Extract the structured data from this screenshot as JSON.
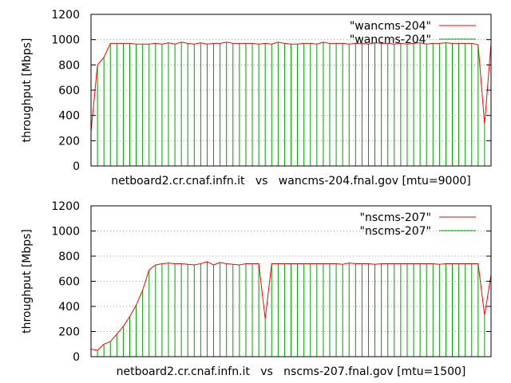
{
  "chart_data": [
    {
      "type": "line",
      "ylabel": "throughput [Mbps]",
      "xlabel": "netboard2.cr.cnaf.infn.it   vs   wancms-204.fnal.gov [mtu=9000]",
      "ylim": [
        0,
        1200
      ],
      "yticks": [
        0,
        200,
        400,
        600,
        800,
        1000,
        1200
      ],
      "grid": "horizontal dotted at y ticks",
      "legend_position": "top-right",
      "series": [
        {
          "name": "\"wancms-204\"",
          "style": "lines",
          "color": "#ff0000"
        },
        {
          "name": "\"wancms-204\"",
          "style": "impulses",
          "color": "#00a000"
        }
      ],
      "x": [
        0,
        1,
        2,
        3,
        4,
        5,
        6,
        7,
        8,
        9,
        10,
        11,
        12,
        13,
        14,
        15,
        16,
        17,
        18,
        19,
        20,
        21,
        22,
        23,
        24,
        25,
        26,
        27,
        28,
        29,
        30,
        31,
        32,
        33,
        34,
        35,
        36,
        37,
        38,
        39,
        40,
        41,
        42,
        43,
        44,
        45,
        46,
        47,
        48,
        49,
        50,
        51,
        52,
        53,
        54,
        55,
        56,
        57,
        58,
        59,
        60,
        61,
        62
      ],
      "values": [
        270,
        800,
        860,
        970,
        970,
        970,
        970,
        965,
        965,
        965,
        970,
        965,
        975,
        965,
        980,
        970,
        965,
        975,
        965,
        970,
        970,
        980,
        970,
        970,
        970,
        970,
        965,
        970,
        965,
        980,
        970,
        965,
        965,
        970,
        970,
        965,
        980,
        970,
        970,
        970,
        965,
        970,
        970,
        965,
        975,
        970,
        970,
        965,
        970,
        965,
        970,
        975,
        965,
        970,
        970,
        975,
        970,
        970,
        970,
        970,
        960,
        330,
        970
      ]
    },
    {
      "type": "line",
      "ylabel": "throughput [Mbps]",
      "xlabel": "netboard2.cr.cnaf.infn.it   vs   nscms-207.fnal.gov [mtu=1500]",
      "ylim": [
        0,
        1200
      ],
      "yticks": [
        0,
        200,
        400,
        600,
        800,
        1000,
        1200
      ],
      "grid": "horizontal dotted at y ticks",
      "legend_position": "top-right",
      "series": [
        {
          "name": "\"nscms-207\"",
          "style": "lines",
          "color": "#ff0000"
        },
        {
          "name": "\"nscms-207\"",
          "style": "impulses",
          "color": "#00a000"
        }
      ],
      "x": [
        0,
        1,
        2,
        3,
        4,
        5,
        6,
        7,
        8,
        9,
        10,
        11,
        12,
        13,
        14,
        15,
        16,
        17,
        18,
        19,
        20,
        21,
        22,
        23,
        24,
        25,
        26,
        27,
        28,
        29,
        30,
        31,
        32,
        33,
        34,
        35,
        36,
        37,
        38,
        39,
        40,
        41,
        42,
        43,
        44,
        45,
        46,
        47,
        48,
        49,
        50,
        51,
        52,
        53,
        54,
        55,
        56,
        57,
        58,
        59,
        60,
        61,
        62
      ],
      "values": [
        60,
        50,
        100,
        120,
        180,
        240,
        320,
        410,
        530,
        690,
        730,
        740,
        745,
        740,
        740,
        735,
        730,
        740,
        755,
        730,
        750,
        740,
        735,
        730,
        740,
        740,
        740,
        300,
        740,
        740,
        740,
        740,
        740,
        740,
        740,
        740,
        740,
        740,
        740,
        735,
        745,
        740,
        740,
        740,
        735,
        740,
        740,
        740,
        740,
        740,
        740,
        740,
        740,
        740,
        735,
        740,
        740,
        740,
        740,
        740,
        740,
        330,
        650
      ]
    }
  ]
}
